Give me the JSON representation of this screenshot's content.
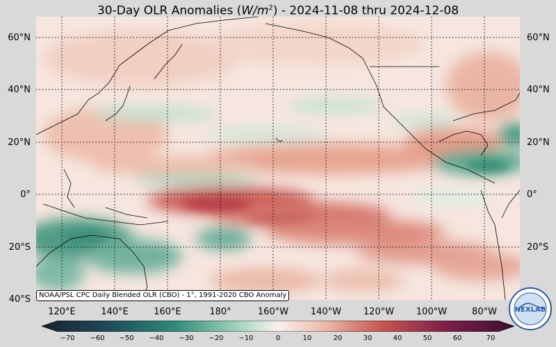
{
  "title": {
    "prefix": "30-Day OLR Anomalies (",
    "unit_base": "W/m",
    "unit_exp": "2",
    "suffix": ") - 2024-11-08 thru 2024-12-08"
  },
  "map": {
    "lat_labels": [
      "60°N",
      "40°N",
      "20°N",
      "0°",
      "20°S",
      "40°S"
    ],
    "lon_labels": [
      "120°E",
      "140°E",
      "160°E",
      "180°",
      "160°W",
      "140°W",
      "120°W",
      "100°W",
      "80°W"
    ],
    "gridlines": "dotted",
    "extent": {
      "lon_min": 110,
      "lon_max": 290,
      "lat_min": -40,
      "lat_max": 68
    },
    "anomaly_regions": [
      {
        "description": "enhanced OLR (dry) band along equator central Pacific",
        "sign": "positive",
        "peak_value": 35
      },
      {
        "description": "dry band extending southeast to South America",
        "sign": "positive",
        "peak_value": 25
      },
      {
        "description": "negative OLR (wet) northern Australia",
        "sign": "negative",
        "peak_value": -30
      },
      {
        "description": "negative OLR Central America / Caribbean",
        "sign": "negative",
        "peak_value": -30
      },
      {
        "description": "negative OLR band ITCZ 5°N western Pacific",
        "sign": "negative",
        "peak_value": -20
      },
      {
        "description": "negative OLR SPCZ near 20°S 180°",
        "sign": "negative",
        "peak_value": -25
      }
    ]
  },
  "credit": "NOAA/PSL CPC Daily Blended OLR (CBO) - 1°, 1991-2020 CBO Anomaly",
  "colorbar": {
    "ticks": [
      "−70",
      "−60",
      "−50",
      "−40",
      "−30",
      "−20",
      "−10",
      "0",
      "10",
      "20",
      "30",
      "40",
      "50",
      "60",
      "70"
    ],
    "range": [
      -70,
      70
    ],
    "colors": {
      "min": "#1a2333",
      "neg_mid": "#2e8a78",
      "neg_light": "#a8d6c0",
      "zero": "#fbf1ee",
      "pos_light": "#ecb8a8",
      "pos_mid": "#c8554e",
      "pos_dark": "#7a1e4a",
      "max": "#3d1030"
    }
  },
  "logo": {
    "text": "NEXLAB"
  }
}
